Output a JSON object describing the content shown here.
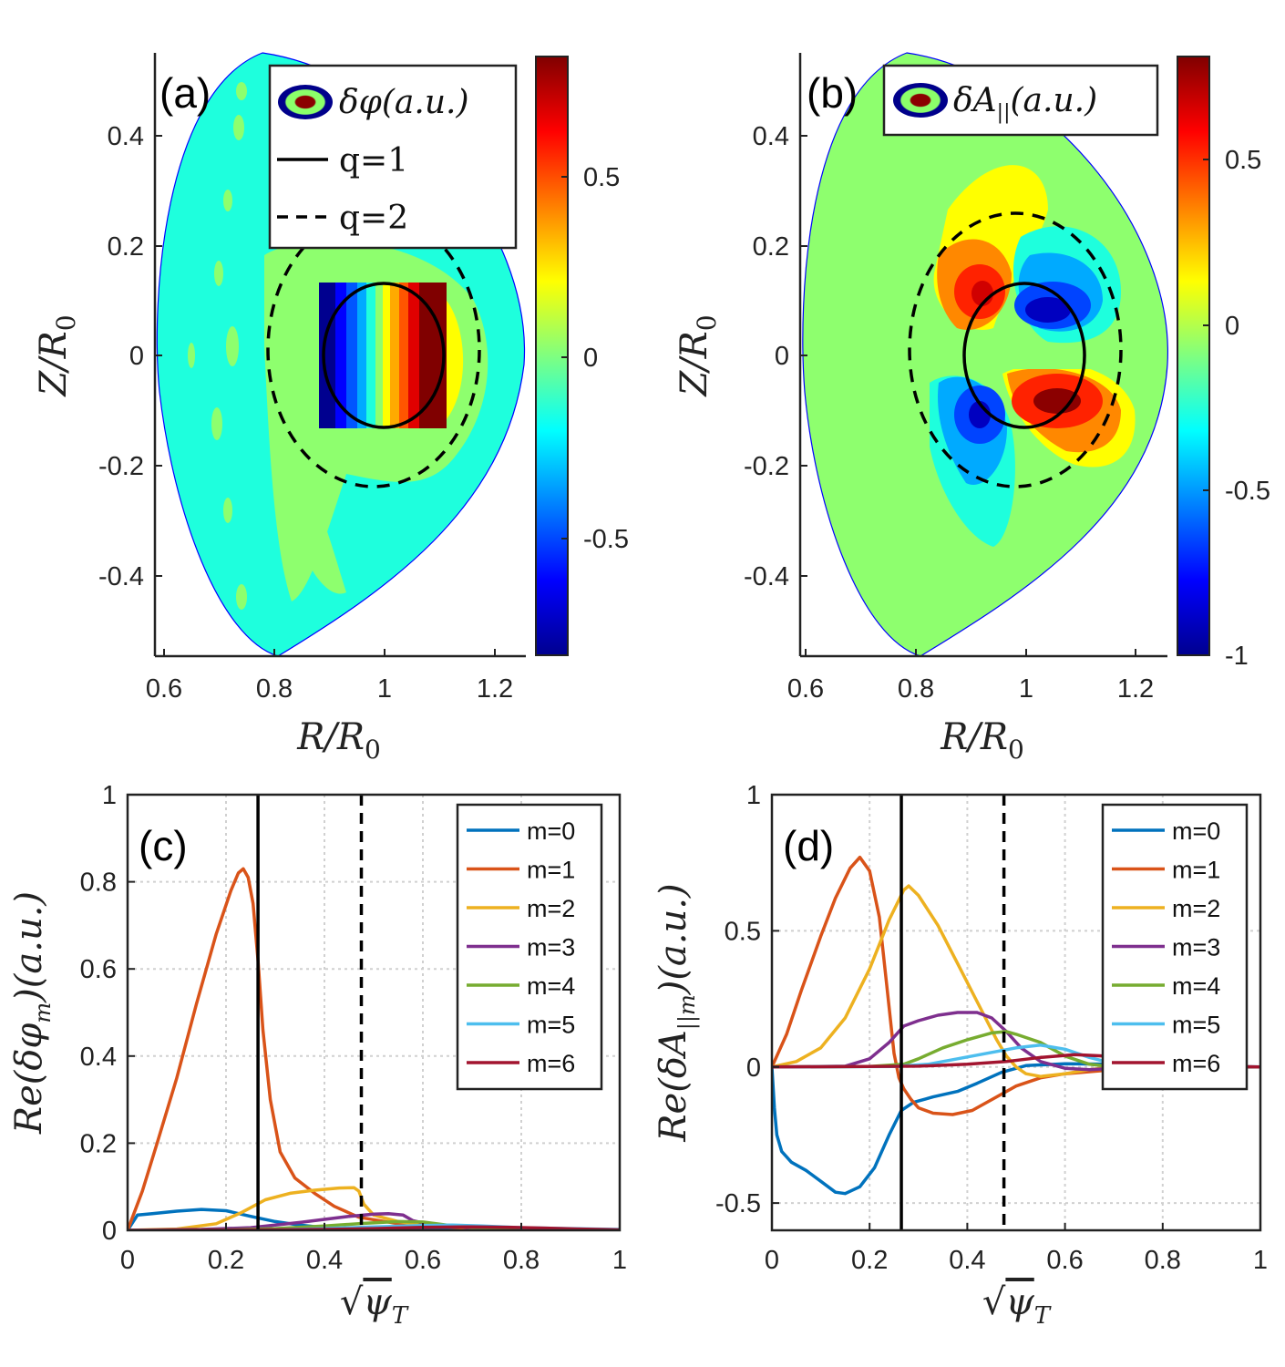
{
  "panels": {
    "a": {
      "label": "(a)",
      "xlabel": "R/R",
      "xlabel_sub": "0",
      "ylabel": "Z/R",
      "ylabel_sub": "0",
      "xticks": [
        "0.6",
        "0.8",
        "1",
        "1.2"
      ],
      "yticks": [
        "0.4",
        "0.2",
        "0",
        "-0.2",
        "-0.4"
      ],
      "colorbar_ticks": [
        "0.5",
        "0",
        "-0.5"
      ],
      "legend": {
        "field": "δφ(a.u.)",
        "q1": "q=1",
        "q2": "q=2"
      }
    },
    "b": {
      "label": "(b)",
      "xlabel": "R/R",
      "xlabel_sub": "0",
      "ylabel": "Z/R",
      "ylabel_sub": "0",
      "xticks": [
        "0.6",
        "0.8",
        "1",
        "1.2"
      ],
      "yticks": [
        "0.4",
        "0.2",
        "0",
        "-0.2",
        "-0.4"
      ],
      "colorbar_ticks": [
        "0.5",
        "0",
        "-0.5",
        "-1"
      ],
      "legend": {
        "field_prefix": "δA",
        "field_sub": "||",
        "field_suffix": "(a.u.)"
      }
    }
  },
  "chart_data": [
    {
      "panel": "c",
      "label": "(c)",
      "type": "line",
      "xlabel": "√ψ_T",
      "xlabel_parts": {
        "root": "√",
        "symbol": "ψ",
        "sub": "T"
      },
      "ylabel": "Re(δφm)(a.u.)",
      "ylabel_parts": {
        "prefix": "Re(δφ",
        "sub": "m",
        "suffix": ")(a.u.)"
      },
      "xlim": [
        0,
        1
      ],
      "ylim": [
        0,
        1
      ],
      "xticks": [
        "0",
        "0.2",
        "0.4",
        "0.6",
        "0.8",
        "1"
      ],
      "yticks": [
        "0",
        "0.2",
        "0.4",
        "0.6",
        "0.8",
        "1"
      ],
      "vlines": [
        {
          "x": 0.265,
          "style": "solid"
        },
        {
          "x": 0.475,
          "style": "dashed"
        }
      ],
      "series": [
        {
          "name": "m=0",
          "color": "#0072BD",
          "x": [
            0,
            0.02,
            0.05,
            0.1,
            0.15,
            0.2,
            0.25,
            0.3,
            0.35,
            0.4,
            0.45,
            0.5,
            0.6,
            0.7,
            0.8,
            0.9,
            1.0
          ],
          "y": [
            0,
            0.035,
            0.038,
            0.044,
            0.048,
            0.045,
            0.032,
            0.02,
            0.012,
            0.006,
            0.004,
            0.003,
            0.002,
            0.001,
            0.001,
            0.001,
            0
          ]
        },
        {
          "name": "m=1",
          "color": "#D95319",
          "x": [
            0,
            0.03,
            0.06,
            0.1,
            0.14,
            0.18,
            0.21,
            0.225,
            0.235,
            0.245,
            0.255,
            0.265,
            0.275,
            0.29,
            0.31,
            0.34,
            0.38,
            0.42,
            0.47,
            0.55,
            0.7,
            1.0
          ],
          "y": [
            0,
            0.09,
            0.2,
            0.35,
            0.52,
            0.68,
            0.78,
            0.82,
            0.83,
            0.81,
            0.75,
            0.62,
            0.46,
            0.3,
            0.18,
            0.12,
            0.085,
            0.055,
            0.03,
            0.015,
            0.004,
            0
          ]
        },
        {
          "name": "m=2",
          "color": "#EDB120",
          "x": [
            0,
            0.1,
            0.18,
            0.23,
            0.28,
            0.33,
            0.38,
            0.43,
            0.46,
            0.47,
            0.48,
            0.5,
            0.55,
            0.6,
            0.7,
            0.8,
            1.0
          ],
          "y": [
            0,
            0.003,
            0.015,
            0.04,
            0.07,
            0.085,
            0.092,
            0.097,
            0.098,
            0.09,
            0.06,
            0.035,
            0.02,
            0.012,
            0.006,
            0.003,
            0
          ]
        },
        {
          "name": "m=3",
          "color": "#7E2F8E",
          "x": [
            0,
            0.15,
            0.25,
            0.3,
            0.35,
            0.4,
            0.45,
            0.5,
            0.53,
            0.56,
            0.58,
            0.62,
            0.7,
            0.8,
            1.0
          ],
          "y": [
            0,
            0.002,
            0.006,
            0.012,
            0.018,
            0.025,
            0.032,
            0.037,
            0.038,
            0.035,
            0.022,
            0.012,
            0.006,
            0.003,
            0
          ]
        },
        {
          "name": "m=4",
          "color": "#77AC30",
          "x": [
            0,
            0.2,
            0.3,
            0.4,
            0.48,
            0.55,
            0.6,
            0.65,
            0.7,
            0.8,
            1.0
          ],
          "y": [
            0,
            0.001,
            0.004,
            0.01,
            0.016,
            0.02,
            0.019,
            0.012,
            0.007,
            0.003,
            0
          ]
        },
        {
          "name": "m=5",
          "color": "#4DBEEE",
          "x": [
            0,
            0.3,
            0.4,
            0.5,
            0.6,
            0.66,
            0.72,
            0.8,
            0.9,
            0.95,
            1.0
          ],
          "y": [
            0,
            0.001,
            0.004,
            0.008,
            0.011,
            0.012,
            0.01,
            0.006,
            0.004,
            0.003,
            0.002
          ]
        },
        {
          "name": "m=6",
          "color": "#A2142F",
          "x": [
            0,
            0.3,
            0.4,
            0.5,
            0.6,
            0.7,
            0.78,
            0.85,
            0.92,
            1.0
          ],
          "y": [
            0,
            0.001,
            0.002,
            0.004,
            0.007,
            0.008,
            0.007,
            0.005,
            0.003,
            0.001
          ]
        }
      ]
    },
    {
      "panel": "d",
      "label": "(d)",
      "type": "line",
      "xlabel": "√ψ_T",
      "xlabel_parts": {
        "root": "√",
        "symbol": "ψ",
        "sub": "T"
      },
      "ylabel": "Re(δA||m)(a.u.)",
      "ylabel_parts": {
        "prefix": "Re(δA",
        "sub": "||m",
        "suffix": ")(a.u.)"
      },
      "xlim": [
        0,
        1
      ],
      "ylim": [
        -0.6,
        1
      ],
      "xticks": [
        "0",
        "0.2",
        "0.4",
        "0.6",
        "0.8",
        "1"
      ],
      "yticks": [
        "-0.5",
        "0",
        "0.5",
        "1"
      ],
      "vlines": [
        {
          "x": 0.265,
          "style": "solid"
        },
        {
          "x": 0.475,
          "style": "dashed"
        }
      ],
      "series": [
        {
          "name": "m=0",
          "color": "#0072BD",
          "x": [
            0,
            0.005,
            0.01,
            0.02,
            0.04,
            0.07,
            0.1,
            0.13,
            0.15,
            0.18,
            0.21,
            0.24,
            0.265,
            0.29,
            0.33,
            0.38,
            0.42,
            0.47,
            0.52,
            0.6,
            0.7,
            0.8,
            1.0
          ],
          "y": [
            0,
            -0.15,
            -0.25,
            -0.31,
            -0.35,
            -0.38,
            -0.42,
            -0.46,
            -0.465,
            -0.44,
            -0.37,
            -0.25,
            -0.16,
            -0.13,
            -0.11,
            -0.09,
            -0.06,
            -0.02,
            0.005,
            0.012,
            0.01,
            0.005,
            0
          ]
        },
        {
          "name": "m=1",
          "color": "#D95319",
          "x": [
            0,
            0.03,
            0.06,
            0.1,
            0.13,
            0.16,
            0.18,
            0.2,
            0.22,
            0.235,
            0.25,
            0.26,
            0.27,
            0.285,
            0.3,
            0.33,
            0.37,
            0.41,
            0.45,
            0.5,
            0.55,
            0.6,
            0.7,
            0.8,
            1.0
          ],
          "y": [
            0,
            0.12,
            0.28,
            0.48,
            0.62,
            0.73,
            0.77,
            0.72,
            0.55,
            0.3,
            0.05,
            -0.04,
            -0.08,
            -0.12,
            -0.15,
            -0.17,
            -0.175,
            -0.16,
            -0.12,
            -0.07,
            -0.04,
            -0.025,
            -0.01,
            -0.005,
            0
          ]
        },
        {
          "name": "m=2",
          "color": "#EDB120",
          "x": [
            0,
            0.05,
            0.1,
            0.15,
            0.2,
            0.24,
            0.27,
            0.28,
            0.3,
            0.34,
            0.38,
            0.42,
            0.46,
            0.48,
            0.5,
            0.52,
            0.55,
            0.6,
            0.65,
            0.7,
            0.8,
            1.0
          ],
          "y": [
            0,
            0.02,
            0.07,
            0.18,
            0.36,
            0.54,
            0.65,
            0.665,
            0.63,
            0.52,
            0.38,
            0.24,
            0.1,
            0.04,
            0.0,
            -0.025,
            -0.035,
            -0.025,
            -0.01,
            0.0,
            0.0,
            0
          ]
        },
        {
          "name": "m=3",
          "color": "#7E2F8E",
          "x": [
            0,
            0.15,
            0.2,
            0.24,
            0.27,
            0.3,
            0.34,
            0.38,
            0.42,
            0.45,
            0.48,
            0.51,
            0.55,
            0.6,
            0.65,
            0.7,
            0.8,
            1.0
          ],
          "y": [
            0,
            0.003,
            0.03,
            0.09,
            0.15,
            0.17,
            0.19,
            0.2,
            0.2,
            0.18,
            0.13,
            0.07,
            0.02,
            -0.005,
            -0.01,
            -0.005,
            0,
            0
          ]
        },
        {
          "name": "m=4",
          "color": "#77AC30",
          "x": [
            0,
            0.2,
            0.27,
            0.3,
            0.35,
            0.4,
            0.45,
            0.48,
            0.5,
            0.55,
            0.6,
            0.65,
            0.7,
            0.8,
            1.0
          ],
          "y": [
            0,
            0.002,
            0.01,
            0.03,
            0.07,
            0.1,
            0.125,
            0.13,
            0.12,
            0.09,
            0.04,
            0.01,
            0.0,
            0.0,
            0
          ]
        },
        {
          "name": "m=5",
          "color": "#4DBEEE",
          "x": [
            0,
            0.25,
            0.32,
            0.38,
            0.44,
            0.5,
            0.55,
            0.6,
            0.65,
            0.7,
            0.8,
            1.0
          ],
          "y": [
            0,
            0.002,
            0.01,
            0.03,
            0.05,
            0.07,
            0.08,
            0.065,
            0.035,
            0.012,
            0.003,
            0
          ]
        },
        {
          "name": "m=6",
          "color": "#A2142F",
          "x": [
            0,
            0.3,
            0.4,
            0.48,
            0.55,
            0.62,
            0.68,
            0.75,
            0.85,
            1.0
          ],
          "y": [
            0,
            0.003,
            0.01,
            0.02,
            0.035,
            0.045,
            0.04,
            0.02,
            0.005,
            0
          ]
        }
      ]
    }
  ]
}
